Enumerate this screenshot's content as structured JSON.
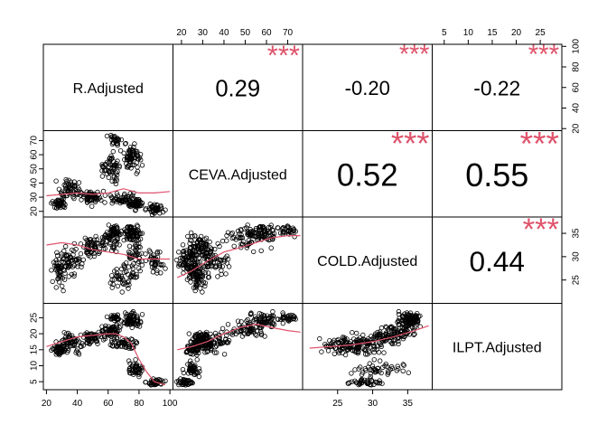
{
  "chart_data": {
    "type": "scatter",
    "variables": [
      "R.Adjusted",
      "CEVA.Adjusted",
      "COLD.Adjusted",
      "ILPT.Adjusted"
    ],
    "axes": {
      "R.Adjusted": {
        "range": [
          18,
          102
        ],
        "ticks": [
          "20",
          "40",
          "60",
          "80",
          "100"
        ],
        "tick_values": [
          20,
          40,
          60,
          80,
          100
        ]
      },
      "CEVA.Adjusted": {
        "range": [
          16,
          77
        ],
        "ticks": [
          "20",
          "30",
          "40",
          "50",
          "60",
          "70"
        ],
        "tick_values": [
          20,
          30,
          40,
          50,
          60,
          70
        ]
      },
      "COLD.Adjusted": {
        "range": [
          20,
          38.5
        ],
        "ticks": [
          "25",
          "30",
          "35"
        ],
        "tick_values": [
          25,
          30,
          35
        ]
      },
      "ILPT.Adjusted": {
        "range": [
          2.5,
          29.5
        ],
        "ticks": [
          "5",
          "10",
          "15",
          "20",
          "25"
        ],
        "tick_values": [
          5,
          10,
          15,
          20,
          25
        ]
      }
    },
    "correlations": [
      {
        "pair": [
          "R.Adjusted",
          "CEVA.Adjusted"
        ],
        "value": "0.29",
        "stars": "***"
      },
      {
        "pair": [
          "R.Adjusted",
          "COLD.Adjusted"
        ],
        "value": "-0.20",
        "stars": "***"
      },
      {
        "pair": [
          "R.Adjusted",
          "ILPT.Adjusted"
        ],
        "value": "-0.22",
        "stars": "***"
      },
      {
        "pair": [
          "CEVA.Adjusted",
          "COLD.Adjusted"
        ],
        "value": "0.52",
        "stars": "***"
      },
      {
        "pair": [
          "CEVA.Adjusted",
          "ILPT.Adjusted"
        ],
        "value": "0.55",
        "stars": "***"
      },
      {
        "pair": [
          "COLD.Adjusted",
          "ILPT.Adjusted"
        ],
        "value": "0.44",
        "stars": "***"
      }
    ],
    "smoothers": [
      {
        "pair": [
          "R.Adjusted",
          "CEVA.Adjusted"
        ],
        "x": [
          20,
          30,
          40,
          50,
          60,
          70,
          80,
          90,
          100
        ],
        "y": [
          31,
          32,
          33,
          32,
          33,
          36,
          33,
          33,
          34
        ]
      },
      {
        "pair": [
          "R.Adjusted",
          "COLD.Adjusted"
        ],
        "x": [
          20,
          30,
          40,
          50,
          60,
          70,
          80,
          90,
          100
        ],
        "y": [
          32.5,
          33,
          32.5,
          31.5,
          31,
          30.5,
          29.5,
          29.5,
          29.5
        ]
      },
      {
        "pair": [
          "R.Adjusted",
          "ILPT.Adjusted"
        ],
        "x": [
          20,
          30,
          40,
          50,
          60,
          65,
          70,
          75,
          80,
          85,
          90,
          97
        ],
        "y": [
          16,
          17.5,
          19,
          19.5,
          20,
          20,
          19,
          17,
          12,
          8,
          5,
          4
        ]
      },
      {
        "pair": [
          "CEVA.Adjusted",
          "COLD.Adjusted"
        ],
        "x": [
          18,
          25,
          32,
          40,
          48,
          55,
          62,
          70,
          76
        ],
        "y": [
          25.5,
          27,
          29,
          31,
          32,
          33,
          34,
          34.5,
          34.5
        ]
      },
      {
        "pair": [
          "CEVA.Adjusted",
          "ILPT.Adjusted"
        ],
        "x": [
          18,
          25,
          32,
          40,
          48,
          55,
          62,
          70,
          76
        ],
        "y": [
          15,
          16,
          17.5,
          20,
          22,
          23,
          22,
          21,
          20.5
        ]
      },
      {
        "pair": [
          "COLD.Adjusted",
          "ILPT.Adjusted"
        ],
        "x": [
          21,
          24,
          27,
          30,
          33,
          36,
          38
        ],
        "y": [
          15.5,
          16,
          16.5,
          17.5,
          19,
          21,
          22.5
        ]
      }
    ],
    "point_clusters": [
      {
        "center": {
          "R.Adjusted": 35,
          "CEVA.Adjusted": 35,
          "COLD.Adjusted": 29,
          "ILPT.Adjusted": 17
        },
        "spread": {
          "R.Adjusted": 8,
          "CEVA.Adjusted": 6,
          "COLD.Adjusted": 2.5,
          "ILPT.Adjusted": 2.5
        },
        "n": 60
      },
      {
        "center": {
          "R.Adjusted": 50,
          "CEVA.Adjusted": 30,
          "COLD.Adjusted": 32,
          "ILPT.Adjusted": 19
        },
        "spread": {
          "R.Adjusted": 6,
          "CEVA.Adjusted": 4,
          "COLD.Adjusted": 2,
          "ILPT.Adjusted": 1.5
        },
        "n": 55
      },
      {
        "center": {
          "R.Adjusted": 62,
          "CEVA.Adjusted": 50,
          "COLD.Adjusted": 34,
          "ILPT.Adjusted": 21
        },
        "spread": {
          "R.Adjusted": 5,
          "CEVA.Adjusted": 10,
          "COLD.Adjusted": 2,
          "ILPT.Adjusted": 1.5
        },
        "n": 55
      },
      {
        "center": {
          "R.Adjusted": 75,
          "CEVA.Adjusted": 58,
          "COLD.Adjusted": 35,
          "ILPT.Adjusted": 24
        },
        "spread": {
          "R.Adjusted": 5,
          "CEVA.Adjusted": 8,
          "COLD.Adjusted": 1.5,
          "ILPT.Adjusted": 2
        },
        "n": 70
      },
      {
        "center": {
          "R.Adjusted": 70,
          "CEVA.Adjusted": 28,
          "COLD.Adjusted": 26,
          "ILPT.Adjusted": 17
        },
        "spread": {
          "R.Adjusted": 8,
          "CEVA.Adjusted": 4,
          "COLD.Adjusted": 2.5,
          "ILPT.Adjusted": 1.5
        },
        "n": 50
      },
      {
        "center": {
          "R.Adjusted": 78,
          "CEVA.Adjusted": 25,
          "COLD.Adjusted": 31,
          "ILPT.Adjusted": 9
        },
        "spread": {
          "R.Adjusted": 4,
          "CEVA.Adjusted": 3,
          "COLD.Adjusted": 3,
          "ILPT.Adjusted": 2
        },
        "n": 45
      },
      {
        "center": {
          "R.Adjusted": 90,
          "CEVA.Adjusted": 22,
          "COLD.Adjusted": 29,
          "ILPT.Adjusted": 5
        },
        "spread": {
          "R.Adjusted": 5,
          "CEVA.Adjusted": 3,
          "COLD.Adjusted": 2,
          "ILPT.Adjusted": 1
        },
        "n": 40
      },
      {
        "center": {
          "R.Adjusted": 28,
          "CEVA.Adjusted": 25,
          "COLD.Adjusted": 27,
          "ILPT.Adjusted": 15
        },
        "spread": {
          "R.Adjusted": 4,
          "CEVA.Adjusted": 3,
          "COLD.Adjusted": 3,
          "ILPT.Adjusted": 1.5
        },
        "n": 40
      },
      {
        "center": {
          "R.Adjusted": 65,
          "CEVA.Adjusted": 70,
          "COLD.Adjusted": 35.5,
          "ILPT.Adjusted": 25
        },
        "spread": {
          "R.Adjusted": 4,
          "CEVA.Adjusted": 3,
          "COLD.Adjusted": 1,
          "ILPT.Adjusted": 1
        },
        "n": 25
      }
    ],
    "colors": {
      "points": "#000000",
      "smoother": "#DF536B",
      "stars": "#DF536B"
    },
    "grid": false,
    "legend": "none"
  }
}
